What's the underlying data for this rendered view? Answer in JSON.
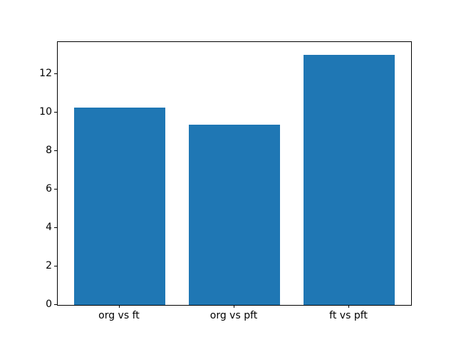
{
  "chart_data": {
    "type": "bar",
    "title": "",
    "xlabel": "",
    "ylabel": "",
    "categories": [
      "org vs ft",
      "org vs pft",
      "ft vs pft"
    ],
    "values": [
      10.25,
      9.35,
      13.0
    ],
    "yticks": [
      0,
      2,
      4,
      6,
      8,
      10,
      12
    ],
    "ylim": [
      0,
      13.65
    ],
    "xlim": [
      -0.54,
      2.54
    ],
    "bar_width": 0.8,
    "bar_color": "#1f77b4",
    "axis_color": "#000000",
    "text_color": "#000000",
    "background_color": "#ffffff",
    "grid": false,
    "legend": null
  }
}
